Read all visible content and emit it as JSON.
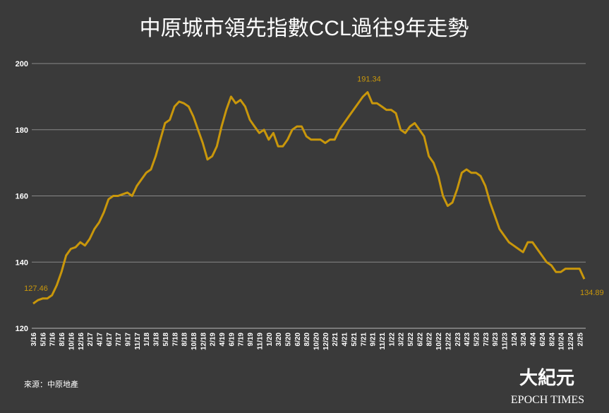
{
  "chart_data": {
    "type": "line",
    "title": "中原城市領先指數CCL過往9年走勢",
    "source": "來源：中原地產",
    "logo": {
      "chinese": "大紀元",
      "english": "EPOCH TIMES"
    },
    "categories": [
      "3/16",
      null,
      "5/16",
      null,
      "7/16",
      null,
      "8/16",
      null,
      "10/16",
      null,
      "12/16",
      null,
      "2/17",
      null,
      "4/17",
      null,
      "6/17",
      null,
      "7/17",
      null,
      "9/17",
      null,
      "11/17",
      null,
      "1/18",
      null,
      "3/18",
      null,
      "5/18",
      null,
      "7/18",
      null,
      "8/18",
      null,
      "10/18",
      null,
      "12/18",
      null,
      "2/19",
      null,
      "4/19",
      null,
      "6/19",
      null,
      "7/19",
      null,
      "9/19",
      null,
      "11/19",
      null,
      "1/20",
      null,
      "3/20",
      null,
      "5/20",
      null,
      "6/20",
      null,
      "8/20",
      null,
      "10/20",
      null,
      "12/20",
      null,
      "2/21",
      null,
      "4/21",
      null,
      "5/21",
      null,
      "7/21",
      null,
      "9/21",
      null,
      "11/21",
      null,
      "1/22",
      null,
      "3/22",
      null,
      "5/22",
      null,
      "6/22",
      null,
      "8/22",
      null,
      "10/22",
      null,
      "12/22",
      null,
      "2/23",
      null,
      "4/23",
      null,
      "5/23",
      null,
      "7/23",
      null,
      "9/23",
      null,
      "11/23",
      null,
      "1/24",
      null,
      "3/24",
      null,
      "4/24",
      null,
      "6/24",
      null,
      "8/24",
      null,
      "10/24",
      null,
      "12/24",
      null,
      "2/25",
      null
    ],
    "series": [
      {
        "name": "CCL",
        "color": "#c9970b",
        "values": [
          127.46,
          128.5,
          129,
          129,
          130,
          133,
          137,
          142,
          144,
          144.5,
          146,
          145,
          147,
          150,
          152,
          155,
          159,
          160,
          160,
          160.5,
          161,
          160,
          163,
          165,
          167,
          168,
          172,
          177,
          182,
          183,
          187,
          188.5,
          188,
          187,
          184,
          180,
          176,
          171,
          172,
          175,
          181,
          186,
          190,
          188,
          189,
          187,
          183,
          181,
          179,
          180,
          177,
          179,
          175,
          175,
          177,
          180,
          181,
          181,
          178,
          177,
          177,
          177,
          176,
          177,
          177,
          180,
          182,
          184,
          186,
          188,
          190,
          191.34,
          188,
          188,
          187,
          186,
          186,
          185,
          180,
          179,
          181,
          182,
          180,
          178,
          172,
          170,
          166,
          160,
          157,
          158,
          162,
          167,
          168,
          167,
          167,
          166,
          163,
          158,
          154,
          150,
          148,
          146,
          145,
          144,
          143,
          146,
          146,
          144,
          142,
          140,
          139,
          137,
          137,
          138,
          138,
          138,
          138,
          134.89
        ]
      }
    ],
    "ylim": [
      120,
      200
    ],
    "yticks": [
      120,
      140,
      160,
      180,
      200
    ],
    "grid": true
  }
}
